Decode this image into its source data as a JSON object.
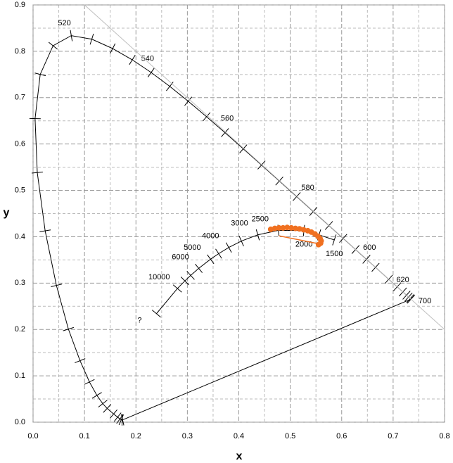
{
  "chart_data": {
    "type": "line",
    "xlabel": "x",
    "ylabel": "y",
    "xlim": [
      0,
      0.8
    ],
    "ylim": [
      0,
      0.9
    ],
    "xticks": [
      {
        "value": 0,
        "label": "0.0"
      },
      0.1,
      0.2,
      0.3,
      0.4,
      0.5,
      0.6,
      0.7,
      0.8
    ],
    "yticks": [
      {
        "value": 0,
        "label": "0.0"
      },
      0.1,
      0.2,
      0.3,
      0.4,
      0.5,
      0.6,
      0.7,
      0.8,
      0.9
    ],
    "minor_xticks": [
      0.05,
      0.15,
      0.25,
      0.35,
      0.45,
      0.55,
      0.65,
      0.75
    ],
    "minor_yticks": [
      0.05,
      0.15,
      0.25,
      0.35,
      0.45,
      0.55,
      0.65,
      0.75,
      0.85
    ],
    "grid": true,
    "series": [
      {
        "color": "#000000",
        "closed": true,
        "ticks": true,
        "x": [
          0.1741,
          0.1733,
          0.1714,
          0.1689,
          0.1644,
          0.1566,
          0.144,
          0.1355,
          0.1241,
          0.1096,
          0.0913,
          0.0687,
          0.0454,
          0.0235,
          0.0082,
          0.0039,
          0.0139,
          0.0389,
          0.0743,
          0.1142,
          0.1547,
          0.1929,
          0.2296,
          0.2658,
          0.3016,
          0.3373,
          0.3731,
          0.4087,
          0.4441,
          0.4788,
          0.5125,
          0.5448,
          0.5752,
          0.6029,
          0.627,
          0.6482,
          0.6658,
          0.6915,
          0.7079,
          0.719,
          0.726,
          0.73,
          0.7334,
          0.7347
        ],
        "values": [
          0.005,
          0.0048,
          0.0051,
          0.0069,
          0.0109,
          0.0177,
          0.0297,
          0.0399,
          0.0578,
          0.0868,
          0.1327,
          0.2007,
          0.295,
          0.4127,
          0.5384,
          0.6548,
          0.7502,
          0.812,
          0.8338,
          0.8262,
          0.8059,
          0.7816,
          0.7543,
          0.7243,
          0.6923,
          0.6589,
          0.6245,
          0.5896,
          0.5547,
          0.5202,
          0.4866,
          0.4544,
          0.4242,
          0.3965,
          0.3725,
          0.3514,
          0.334,
          0.3083,
          0.292,
          0.2809,
          0.274,
          0.27,
          0.2666,
          0.2653
        ],
        "labels": [
          null,
          null,
          null,
          null,
          null,
          null,
          null,
          null,
          null,
          null,
          null,
          null,
          null,
          null,
          null,
          null,
          null,
          null,
          "520",
          null,
          null,
          null,
          "540",
          null,
          null,
          null,
          "560",
          null,
          null,
          null,
          "580",
          null,
          null,
          null,
          "600",
          null,
          null,
          "620",
          null,
          null,
          null,
          null,
          null,
          "700"
        ]
      },
      {
        "color": "#000000",
        "ticks": true,
        "x": [
          0.5857,
          0.556,
          0.5267,
          0.477,
          0.4369,
          0.405,
          0.3805,
          0.3608,
          0.3451,
          0.3221,
          0.3064,
          0.2952,
          0.2807,
          0.2399
        ],
        "values": [
          0.3931,
          0.404,
          0.4133,
          0.4137,
          0.4041,
          0.3907,
          0.3768,
          0.3635,
          0.3516,
          0.3318,
          0.3166,
          0.3048,
          0.2884,
          0.2341
        ],
        "labels": [
          "1500",
          null,
          "2000",
          "2500",
          "3000",
          null,
          "4000",
          null,
          "5000",
          "6000",
          null,
          null,
          "10000",
          "?"
        ]
      },
      {
        "color": "#c0c0c0",
        "x": [
          0.1,
          0.8
        ],
        "values": [
          0.9,
          0.2
        ]
      },
      {
        "color": "#f07020",
        "marker": "circle",
        "line": false,
        "x": [
          0.462,
          0.47,
          0.478,
          0.486,
          0.494,
          0.502,
          0.51,
          0.518,
          0.526,
          0.534,
          0.541,
          0.548,
          0.554,
          0.558,
          0.56,
          0.559,
          0.555
        ],
        "values": [
          0.416,
          0.418,
          0.419,
          0.419,
          0.42,
          0.419,
          0.418,
          0.417,
          0.415,
          0.413,
          0.41,
          0.406,
          0.401,
          0.396,
          0.391,
          0.386,
          0.383
        ]
      },
      {
        "color": "#f07020",
        "x": [
          0.478,
          0.555
        ],
        "values": [
          0.402,
          0.385
        ]
      }
    ]
  }
}
